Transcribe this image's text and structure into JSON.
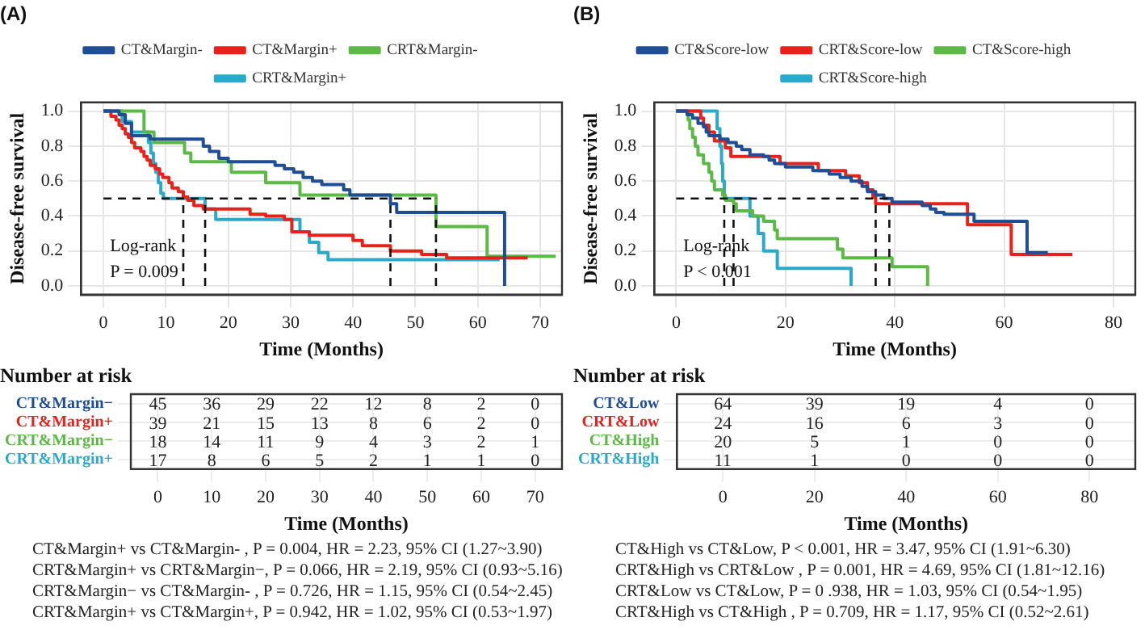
{
  "chart_data": [
    {
      "type": "step",
      "title": "(A)",
      "xlabel": "Time (Months)",
      "ylabel": "Disease-free survival",
      "xlim": [
        -3.6,
        73.5
      ],
      "xticks": [
        0,
        10,
        20,
        30,
        40,
        50,
        60,
        70
      ],
      "ylim": [
        -0.05,
        1.05
      ],
      "yticks": [
        {
          "value": 0,
          "label": "0.0"
        },
        {
          "value": 0.2,
          "label": "0.2"
        },
        {
          "value": 0.4,
          "label": "0.4"
        },
        {
          "value": 0.6,
          "label": "0.6"
        },
        {
          "value": 0.8,
          "label": "0.8"
        },
        {
          "value": 1,
          "label": "1.0"
        }
      ],
      "grid": true,
      "legend": "top",
      "series": [
        {
          "name": "CT&Margin-",
          "color": "#1f4e96",
          "x": [
            0,
            2.5,
            3.5,
            4.5,
            7.5,
            16,
            17,
            18.5,
            20,
            27.5,
            29,
            30.5,
            32,
            33.5,
            35,
            38.5,
            39.5,
            46,
            47,
            64.3
          ],
          "values": [
            1,
            0.98,
            0.93,
            0.86,
            0.84,
            0.8,
            0.77,
            0.73,
            0.71,
            0.69,
            0.67,
            0.65,
            0.62,
            0.6,
            0.58,
            0.55,
            0.52,
            0.47,
            0.42,
            0
          ]
        },
        {
          "name": "CT&Margin+",
          "color": "#e8221b",
          "x": [
            0,
            1.2,
            2,
            2.5,
            3,
            3.5,
            4,
            4.5,
            5,
            6,
            6.5,
            7,
            7.5,
            8.3,
            9,
            9.5,
            10.5,
            11,
            12,
            12.8,
            13.5,
            14.5,
            16,
            23.5,
            26,
            29,
            30.2,
            33,
            40,
            41.5,
            46,
            51,
            55,
            68
          ],
          "values": [
            1,
            0.97,
            0.95,
            0.92,
            0.9,
            0.87,
            0.85,
            0.82,
            0.79,
            0.77,
            0.74,
            0.72,
            0.69,
            0.67,
            0.64,
            0.62,
            0.59,
            0.56,
            0.54,
            0.51,
            0.49,
            0.46,
            0.44,
            0.41,
            0.4,
            0.38,
            0.31,
            0.29,
            0.26,
            0.23,
            0.2,
            0.18,
            0.16,
            0.16
          ]
        },
        {
          "name": "CRT&Margin-",
          "color": "#5cb946",
          "x": [
            0,
            6.5,
            8.1,
            13,
            14,
            20.5,
            26,
            31.5,
            53.3,
            61.5,
            72.5
          ],
          "values": [
            1,
            0.88,
            0.82,
            0.76,
            0.71,
            0.65,
            0.59,
            0.52,
            0.34,
            0.17,
            0.17
          ]
        },
        {
          "name": "CRT&Margin+",
          "color": "#2aa9c9",
          "x": [
            0,
            3,
            4.5,
            7.2,
            7.6,
            8,
            8.4,
            8.8,
            9.2,
            9.6,
            16.3,
            18,
            31.5,
            33,
            34.5,
            36,
            63.5
          ],
          "values": [
            1,
            0.94,
            0.88,
            0.82,
            0.76,
            0.7,
            0.65,
            0.59,
            0.53,
            0.5,
            0.44,
            0.38,
            0.31,
            0.25,
            0.19,
            0.15,
            0.15
          ]
        }
      ],
      "ref_lines": [
        {
          "axis": "y",
          "value": 0.5,
          "line_style": "dashed"
        },
        {
          "axis": "x",
          "value": 12.8,
          "line_style": "dashed"
        },
        {
          "axis": "x",
          "value": 16.3,
          "line_style": "dashed"
        },
        {
          "axis": "x",
          "value": 46,
          "line_style": "dashed"
        },
        {
          "axis": "x",
          "value": 53.3,
          "line_style": "dashed"
        }
      ],
      "annotations": [
        "Log-rank\nP = 0.009"
      ]
    },
    {
      "type": "heatmap",
      "title": "Number at risk",
      "xlabel": "Time (Months)",
      "grid": true,
      "data_labels": true,
      "categories": [
        "0",
        "10",
        "20",
        "30",
        "40",
        "50",
        "60",
        "70"
      ],
      "y_categories": [
        "CT&Margin−",
        "CT&Margin+",
        "CRT&Margin−",
        "CRT&Margin+"
      ],
      "cells": [
        [
          45,
          36,
          29,
          22,
          12,
          8,
          2,
          0
        ],
        [
          39,
          21,
          15,
          13,
          8,
          6,
          2,
          0
        ],
        [
          18,
          14,
          11,
          9,
          4,
          3,
          2,
          1
        ],
        [
          17,
          8,
          6,
          5,
          2,
          1,
          1,
          0
        ]
      ],
      "annotations": [
        "CT&Margin+ vs CT&Margin- , P = 0.004, HR = 2.23, 95% CI (1.27~3.90)",
        "CRT&Margin+ vs CRT&Margin−, P = 0.066, HR = 2.19, 95% CI (0.93~5.16)",
        "CRT&Margin− vs CT&Margin- , P = 0.726, HR = 1.15, 95% CI (0.54~2.45)",
        "CRT&Margin+ vs CT&Margin+, P = 0.942, HR = 1.02, 95% CI (0.53~1.97)"
      ]
    },
    {
      "type": "step",
      "title": "(B)",
      "xlabel": "Time (Months)",
      "ylabel": "Disease-free survival",
      "xlim": [
        -4,
        84
      ],
      "xticks": [
        0,
        20,
        40,
        60,
        80
      ],
      "ylim": [
        -0.05,
        1.05
      ],
      "yticks": [
        {
          "value": 0,
          "label": "0.0"
        },
        {
          "value": 0.2,
          "label": "0.2"
        },
        {
          "value": 0.4,
          "label": "0.4"
        },
        {
          "value": 0.6,
          "label": "0.6"
        },
        {
          "value": 0.8,
          "label": "0.8"
        },
        {
          "value": 1,
          "label": "1.0"
        }
      ],
      "grid": true,
      "legend": "top",
      "series": [
        {
          "name": "CT&Score-low",
          "color": "#1f4e96",
          "x": [
            0,
            2,
            3,
            4,
            5,
            5.5,
            6,
            8,
            9.5,
            11,
            12,
            13.5,
            16,
            17,
            18,
            20,
            25,
            28,
            30,
            32,
            34,
            35,
            36.5,
            38,
            39.5,
            45,
            46.5,
            47.5,
            49,
            54.5,
            64.2,
            68
          ],
          "values": [
            1,
            0.98,
            0.96,
            0.93,
            0.91,
            0.88,
            0.86,
            0.84,
            0.82,
            0.8,
            0.78,
            0.75,
            0.74,
            0.72,
            0.7,
            0.68,
            0.66,
            0.64,
            0.62,
            0.6,
            0.57,
            0.54,
            0.52,
            0.5,
            0.48,
            0.46,
            0.44,
            0.42,
            0.41,
            0.37,
            0.19,
            0.19
          ]
        },
        {
          "name": "CRT&Score-low",
          "color": "#e8221b",
          "x": [
            0,
            4.5,
            5,
            6,
            7,
            9,
            10,
            19,
            26,
            31,
            33.5,
            35,
            36,
            36.5,
            53.3,
            61.3,
            72.5
          ],
          "values": [
            1,
            0.96,
            0.92,
            0.88,
            0.83,
            0.79,
            0.74,
            0.7,
            0.66,
            0.63,
            0.59,
            0.55,
            0.51,
            0.47,
            0.35,
            0.18,
            0.18
          ]
        },
        {
          "name": "CT&Score-high",
          "color": "#5cb946",
          "x": [
            0,
            2.2,
            2.5,
            3,
            3.5,
            4,
            5,
            6,
            6.5,
            7,
            8.5,
            9,
            10.5,
            11,
            14,
            16,
            18,
            18.5,
            29.5,
            30.5,
            39.5,
            46
          ],
          "values": [
            1,
            0.95,
            0.9,
            0.85,
            0.8,
            0.75,
            0.7,
            0.65,
            0.6,
            0.55,
            0.52,
            0.49,
            0.47,
            0.43,
            0.4,
            0.37,
            0.32,
            0.27,
            0.21,
            0.16,
            0.11,
            0
          ]
        },
        {
          "name": "CRT&Score-high",
          "color": "#2aa9c9",
          "x": [
            0,
            7.5,
            8,
            8.3,
            8.5,
            8.8,
            13.5,
            15,
            16,
            18.5,
            32
          ],
          "values": [
            1,
            0.9,
            0.8,
            0.7,
            0.6,
            0.5,
            0.4,
            0.3,
            0.2,
            0.1,
            0
          ]
        }
      ],
      "ref_lines": [
        {
          "axis": "y",
          "value": 0.5,
          "line_style": "dashed"
        },
        {
          "axis": "x",
          "value": 8.8,
          "line_style": "dashed"
        },
        {
          "axis": "x",
          "value": 10.5,
          "line_style": "dashed"
        },
        {
          "axis": "x",
          "value": 36.5,
          "line_style": "dashed"
        },
        {
          "axis": "x",
          "value": 39,
          "line_style": "dashed"
        }
      ],
      "annotations": [
        "Log-rank\nP < 0.001"
      ]
    },
    {
      "type": "heatmap",
      "title": "Number at risk",
      "xlabel": "Time (Months)",
      "grid": true,
      "data_labels": true,
      "categories": [
        "0",
        "20",
        "40",
        "60",
        "80"
      ],
      "y_categories": [
        "CT&Low",
        "CRT&Low",
        "CT&High",
        "CRT&High"
      ],
      "cells": [
        [
          64,
          39,
          19,
          4,
          0
        ],
        [
          24,
          16,
          6,
          3,
          0
        ],
        [
          20,
          5,
          1,
          0,
          0
        ],
        [
          11,
          1,
          0,
          0,
          0
        ]
      ],
      "annotations": [
        "CT&High vs CT&Low, P < 0.001, HR = 3.47, 95% CI (1.91~6.30)",
        "CRT&High vs CRT&Low , P = 0.001, HR = 4.69, 95% CI (1.81~12.16)",
        "CRT&Low vs CT&Low, P = 0 .938, HR = 1.03, 95% CI (0.54~1.95)",
        "CRT&High vs CT&High , P = 0.709, HR = 1.17, 95% CI (0.52~2.61)"
      ]
    }
  ]
}
